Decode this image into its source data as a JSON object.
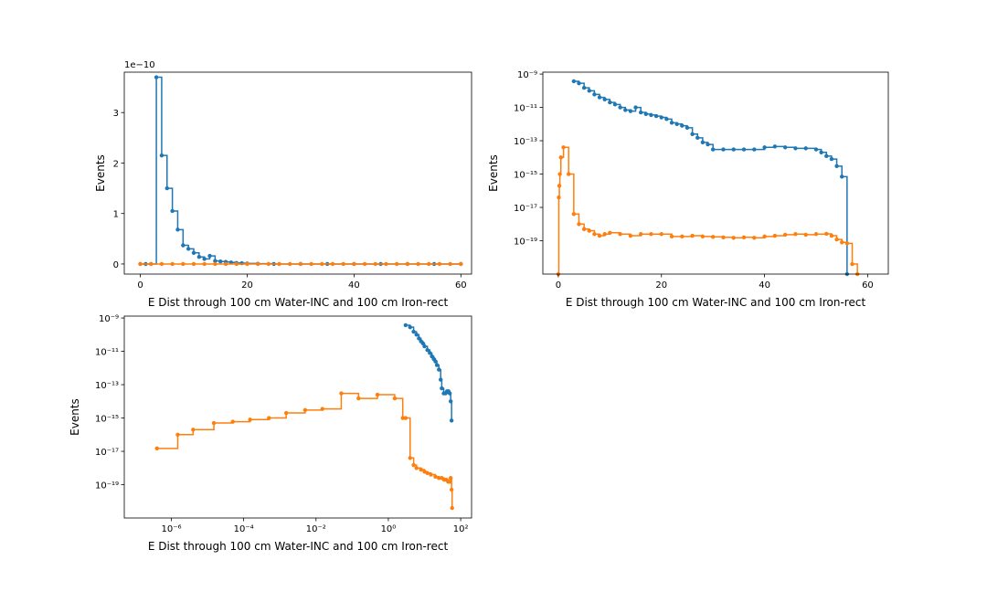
{
  "chart_data": [
    {
      "type": "line",
      "subtype": "step",
      "panel": "top-left",
      "yscale": "linear",
      "xscale": "linear",
      "title": "",
      "xlabel": "E Dist through 100 cm Water-INC and 100 cm Iron-rect",
      "ylabel": "Events",
      "offset_label": "1e−10",
      "xlim": [
        -3,
        62
      ],
      "ylim": [
        -0.2,
        3.8
      ],
      "xticks": [
        0,
        20,
        40,
        60
      ],
      "xtick_labels": [
        "0",
        "20",
        "40",
        "60"
      ],
      "yticks": [
        0,
        1,
        2,
        3
      ],
      "ytick_labels": [
        "0",
        "1",
        "2",
        "3"
      ],
      "series": [
        {
          "name": "blue",
          "color": "#1f77b4",
          "x": [
            0,
            1,
            2,
            3,
            4,
            5,
            6,
            7,
            8,
            9,
            10,
            11,
            12,
            13,
            14,
            15,
            16,
            17,
            18,
            19,
            20,
            22,
            25,
            30,
            35,
            40,
            45,
            50,
            55,
            60
          ],
          "y": [
            0,
            0,
            0,
            3.7,
            2.15,
            1.5,
            1.05,
            0.68,
            0.37,
            0.3,
            0.22,
            0.14,
            0.1,
            0.16,
            0.06,
            0.05,
            0.04,
            0.03,
            0.02,
            0.015,
            0.01,
            0.005,
            0,
            0,
            0,
            0,
            0,
            0,
            0,
            0
          ]
        },
        {
          "name": "orange",
          "color": "#ff7f0e",
          "x": [
            0,
            2,
            4,
            6,
            8,
            10,
            12,
            14,
            16,
            18,
            20,
            22,
            24,
            26,
            28,
            30,
            32,
            34,
            36,
            38,
            40,
            42,
            44,
            46,
            48,
            50,
            52,
            54,
            56,
            58,
            60
          ],
          "y": [
            0,
            0,
            0,
            0,
            0,
            0,
            0,
            0,
            0,
            0,
            0,
            0,
            0,
            0,
            0,
            0,
            0,
            0,
            0,
            0,
            0,
            0,
            0,
            0,
            0,
            0,
            0,
            0,
            0,
            0,
            0
          ]
        }
      ]
    },
    {
      "type": "line",
      "subtype": "step",
      "panel": "top-right",
      "yscale": "log",
      "xscale": "linear",
      "title": "",
      "xlabel": "E Dist through 100 cm Water-INC and 100 cm Iron-rect",
      "ylabel": "Events",
      "xlim": [
        -3,
        64
      ],
      "ylim": [
        1e-21,
        1.3e-09
      ],
      "xticks": [
        0,
        20,
        40,
        60
      ],
      "xtick_labels": [
        "0",
        "20",
        "40",
        "60"
      ],
      "yticks": [
        1e-19,
        1e-17,
        1e-15,
        1e-13,
        1e-11,
        1e-09
      ],
      "ytick_labels": [
        "10^-19",
        "10^-17",
        "10^-15",
        "10^-13",
        "10^-11",
        "10^-9"
      ],
      "series": [
        {
          "name": "blue",
          "color": "#1f77b4",
          "x": [
            3,
            4,
            5,
            6,
            7,
            8,
            9,
            10,
            11,
            12,
            13,
            14,
            15,
            16,
            17,
            18,
            19,
            20,
            21,
            22,
            23,
            24,
            25,
            26,
            27,
            28,
            29,
            30,
            32,
            34,
            36,
            38,
            40,
            42,
            44,
            46,
            48,
            50,
            51,
            52,
            53,
            54,
            55,
            56
          ],
          "y": [
            3.7e-10,
            2.8e-10,
            1.5e-10,
            1e-10,
            6e-11,
            4e-11,
            3e-11,
            2e-11,
            1.5e-11,
            1e-11,
            7e-12,
            6e-12,
            1e-11,
            5e-12,
            4e-12,
            3.5e-12,
            3e-12,
            2.5e-12,
            2e-12,
            1.2e-12,
            1e-12,
            8e-13,
            6e-13,
            2.5e-13,
            1.5e-13,
            8e-14,
            6e-14,
            3e-14,
            3e-14,
            3e-14,
            3e-14,
            3e-14,
            4e-14,
            4.5e-14,
            4e-14,
            3.5e-14,
            3.5e-14,
            3e-14,
            2e-14,
            1.2e-14,
            8e-15,
            3e-15,
            7e-16,
            1e-21
          ]
        },
        {
          "name": "orange",
          "color": "#ff7f0e",
          "x": [
            0,
            0.1,
            0.2,
            0.3,
            0.5,
            1,
            2,
            3,
            4,
            5,
            6,
            7,
            8,
            9,
            10,
            12,
            14,
            16,
            18,
            20,
            22,
            24,
            26,
            28,
            30,
            32,
            34,
            36,
            38,
            40,
            42,
            44,
            46,
            48,
            50,
            52,
            53,
            54,
            55,
            56,
            57,
            58
          ],
          "y": [
            1e-21,
            4e-17,
            2e-16,
            1e-15,
            1e-14,
            4e-14,
            1e-15,
            4e-18,
            1e-18,
            5e-19,
            4e-19,
            2.5e-19,
            2e-19,
            2.5e-19,
            3e-19,
            2.5e-19,
            2e-19,
            2.5e-19,
            2.5e-19,
            2.5e-19,
            1.8e-19,
            1.8e-19,
            2e-19,
            1.8e-19,
            1.7e-19,
            1.6e-19,
            1.5e-19,
            1.6e-19,
            1.5e-19,
            1.8e-19,
            2e-19,
            2.3e-19,
            2.5e-19,
            2.3e-19,
            2.5e-19,
            2.6e-19,
            2e-19,
            1.2e-19,
            8e-20,
            7e-20,
            4e-21,
            1e-21
          ]
        }
      ]
    },
    {
      "type": "line",
      "subtype": "step",
      "panel": "bottom-left",
      "yscale": "log",
      "xscale": "log",
      "title": "",
      "xlabel": "E Dist through 100 cm Water-INC and 100 cm Iron-rect",
      "ylabel": "Events",
      "xlim": [
        5e-08,
        200
      ],
      "ylim": [
        1e-21,
        1.3e-09
      ],
      "xticks": [
        1e-06,
        0.0001,
        0.01,
        1,
        100
      ],
      "xtick_labels": [
        "10^-6",
        "10^-4",
        "10^-2",
        "10^0",
        "10^2"
      ],
      "yticks": [
        1e-19,
        1e-17,
        1e-15,
        1e-13,
        1e-11,
        1e-09
      ],
      "ytick_labels": [
        "10^-19",
        "10^-17",
        "10^-15",
        "10^-13",
        "10^-11",
        "10^-9"
      ],
      "series": [
        {
          "name": "blue",
          "color": "#1f77b4",
          "x": [
            3,
            4,
            5,
            6,
            7,
            8,
            9,
            10,
            12,
            14,
            16,
            18,
            20,
            22,
            25,
            28,
            30,
            34,
            38,
            42,
            46,
            50,
            53,
            56
          ],
          "y": [
            3.7e-10,
            2.8e-10,
            1.5e-10,
            1e-10,
            6e-11,
            4e-11,
            3e-11,
            2e-11,
            1.2e-11,
            8e-12,
            5e-12,
            3.5e-12,
            2.5e-12,
            1.5e-12,
            8e-13,
            2e-13,
            6e-14,
            3e-14,
            3e-14,
            4e-14,
            4e-14,
            3e-14,
            1e-14,
            7e-16
          ]
        },
        {
          "name": "orange",
          "color": "#ff7f0e",
          "x": [
            4e-07,
            1.5e-06,
            4e-06,
            1.5e-05,
            5e-05,
            0.00015,
            0.0005,
            0.0015,
            0.005,
            0.015,
            0.05,
            0.15,
            0.5,
            1.5,
            2.5,
            3,
            4,
            5,
            6,
            8,
            10,
            12,
            15,
            20,
            25,
            30,
            35,
            40,
            45,
            50,
            53,
            56,
            58
          ],
          "y": [
            1.5e-17,
            1e-16,
            2e-16,
            5e-16,
            6e-16,
            8e-16,
            1e-15,
            2e-15,
            3e-15,
            3.5e-15,
            3e-14,
            1.5e-14,
            2.5e-14,
            1.5e-14,
            1e-15,
            1e-15,
            4e-18,
            1.5e-18,
            1e-18,
            8e-19,
            6e-19,
            5e-19,
            4e-19,
            3e-19,
            2.5e-19,
            2.5e-19,
            2e-19,
            2e-19,
            1.5e-19,
            1.5e-19,
            2.5e-19,
            5e-20,
            4e-21
          ]
        }
      ]
    }
  ]
}
